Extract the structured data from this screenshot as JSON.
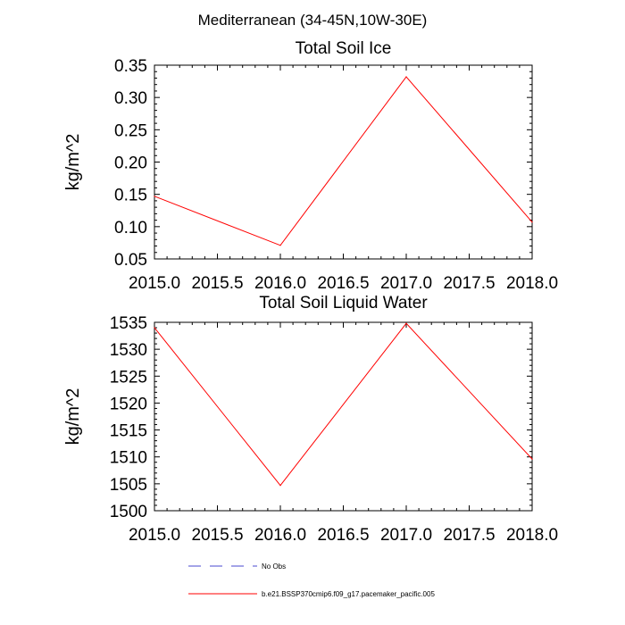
{
  "figure": {
    "suptitle": "Mediterranean (34-45N,10W-30E)"
  },
  "chart_data": [
    {
      "type": "line",
      "title": "Total Soil Ice",
      "xlabel": "",
      "ylabel": "kg/m^2",
      "xlim": [
        2015.0,
        2018.0
      ],
      "ylim": [
        0.05,
        0.35
      ],
      "x_ticks": [
        "2015.0",
        "2015.5",
        "2016.0",
        "2016.5",
        "2017.0",
        "2017.5",
        "2018.0"
      ],
      "y_ticks": [
        "0.05",
        "0.10",
        "0.15",
        "0.20",
        "0.25",
        "0.30",
        "0.35"
      ],
      "series": [
        {
          "name": "b.e21.BSSP370cmip6.f09_g17.pacemaker_pacific.005",
          "color": "#ff0000",
          "x": [
            2015.0,
            2016.0,
            2017.0,
            2018.0
          ],
          "y": [
            0.147,
            0.071,
            0.332,
            0.107
          ]
        }
      ]
    },
    {
      "type": "line",
      "title": "Total Soil Liquid Water",
      "xlabel": "",
      "ylabel": "kg/m^2",
      "xlim": [
        2015.0,
        2018.0
      ],
      "ylim": [
        1500,
        1535
      ],
      "x_ticks": [
        "2015.0",
        "2015.5",
        "2016.0",
        "2016.5",
        "2017.0",
        "2017.5",
        "2018.0"
      ],
      "y_ticks": [
        "1500",
        "1505",
        "1510",
        "1515",
        "1520",
        "1525",
        "1530",
        "1535"
      ],
      "series": [
        {
          "name": "b.e21.BSSP370cmip6.f09_g17.pacemaker_pacific.005",
          "color": "#ff0000",
          "x": [
            2015.0,
            2016.0,
            2017.0,
            2018.0
          ],
          "y": [
            1534.0,
            1504.7,
            1534.8,
            1509.6
          ]
        }
      ]
    }
  ],
  "legend": {
    "placement": "bottom",
    "entries": [
      {
        "label": "No Obs",
        "color": "#4a4ad0",
        "style": "dashed"
      },
      {
        "label": "b.e21.BSSP370cmip6.f09_g17.pacemaker_pacific.005",
        "color": "#ff0000",
        "style": "solid"
      }
    ]
  }
}
